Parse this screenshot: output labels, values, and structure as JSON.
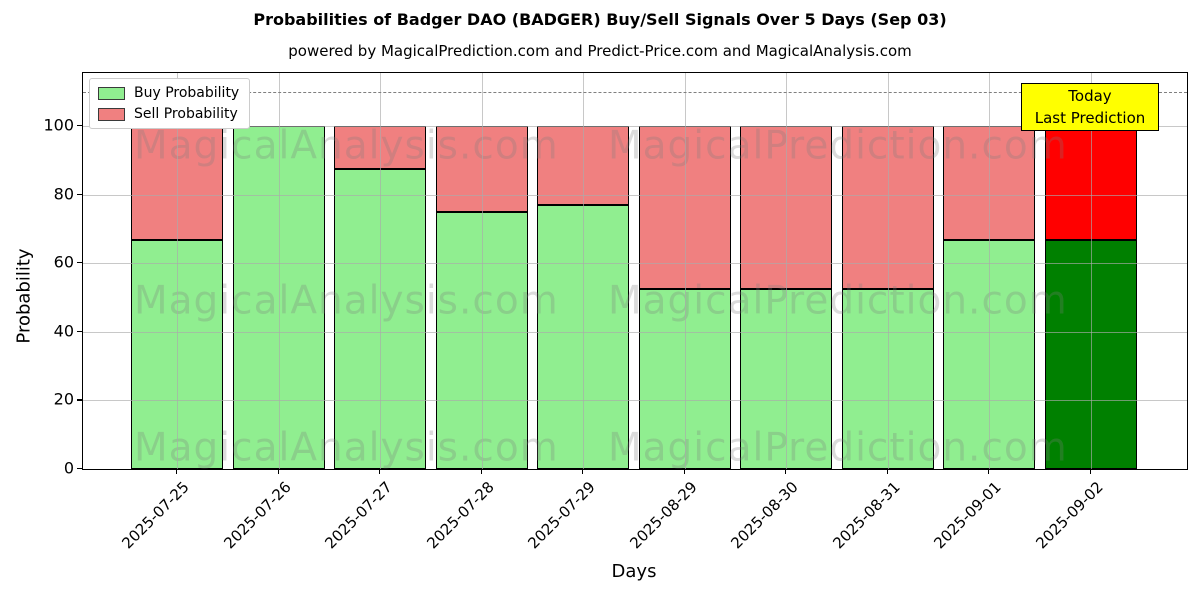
{
  "title": "Probabilities of Badger DAO (BADGER) Buy/Sell Signals Over 5 Days (Sep 03)",
  "subtitle": "powered by MagicalPrediction.com and Predict-Price.com and MagicalAnalysis.com",
  "legend": {
    "items": [
      {
        "label": "Buy Probability",
        "color": "#90ee90"
      },
      {
        "label": "Sell Probability",
        "color": "#f08080"
      }
    ]
  },
  "annotation_box": {
    "line1": "Today",
    "line2": "Last Prediction",
    "bg_color": "#ffff00"
  },
  "axes": {
    "x_label": "Days",
    "y_label": "Probability",
    "y_ticks": [
      0,
      20,
      40,
      60,
      80,
      100
    ]
  },
  "watermarks": {
    "left_text": "MagicalAnalysis.com",
    "right_text": "MagicalPrediction.com"
  },
  "chart_data": {
    "type": "bar",
    "stacked": true,
    "title": "Probabilities of Badger DAO (BADGER) Buy/Sell Signals Over 5 Days (Sep 03)",
    "xlabel": "Days",
    "ylabel": "Probability",
    "ylim": [
      0,
      115.5
    ],
    "grid": true,
    "dashed_guide_y": 110,
    "legend_position": "upper left",
    "categories": [
      "2025-07-25",
      "2025-07-26",
      "2025-07-27",
      "2025-07-28",
      "2025-07-29",
      "2025-08-29",
      "2025-08-30",
      "2025-08-31",
      "2025-09-01",
      "2025-09-02"
    ],
    "series": [
      {
        "name": "Buy Probability",
        "color": "#90ee90",
        "today_color": "#008000",
        "values": [
          66.7,
          100,
          87.5,
          75,
          77,
          52.4,
          52.4,
          52.4,
          66.7,
          66.7
        ]
      },
      {
        "name": "Sell Probability",
        "color": "#f08080",
        "today_color": "#ff0000",
        "values": [
          33.3,
          0,
          12.5,
          25,
          23,
          47.6,
          47.6,
          47.6,
          33.3,
          33.3
        ]
      }
    ],
    "today_index": 9
  }
}
